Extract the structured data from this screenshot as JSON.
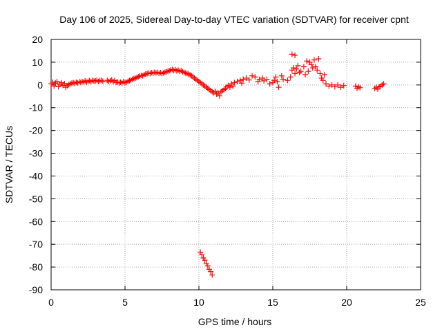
{
  "chart_data": {
    "type": "scatter",
    "title": "Day 106 of 2025, Sidereal Day-to-day VTEC variation (SDTVAR) for receiver cpnt",
    "xlabel": "GPS time / hours",
    "ylabel": "SDTVAR / TECUs",
    "xlim": [
      0,
      25
    ],
    "ylim": [
      -90,
      20
    ],
    "xticks": [
      0,
      5,
      10,
      15,
      20,
      25
    ],
    "yticks": [
      20,
      10,
      0,
      -10,
      -20,
      -30,
      -40,
      -50,
      -60,
      -70,
      -80,
      -90
    ],
    "grid": true,
    "marker": "plus",
    "colors": {
      "series": "#ff0000",
      "grid": "#a0a0a0",
      "axes": "#000000"
    },
    "series": [
      {
        "name": "SDTVAR",
        "points": [
          [
            0.0,
            0.5
          ],
          [
            0.1,
            1.2
          ],
          [
            0.2,
            -0.5
          ],
          [
            0.3,
            0.8
          ],
          [
            0.4,
            1.5
          ],
          [
            0.5,
            -0.8
          ],
          [
            0.6,
            0.3
          ],
          [
            0.7,
            1.0
          ],
          [
            0.8,
            -0.2
          ],
          [
            0.9,
            0.6
          ],
          [
            1.0,
            -1.0
          ],
          [
            1.1,
            -0.3
          ],
          [
            1.2,
            0.2
          ],
          [
            1.3,
            0.5
          ],
          [
            1.4,
            0.8
          ],
          [
            1.5,
            1.0
          ],
          [
            1.6,
            0.7
          ],
          [
            1.7,
            1.2
          ],
          [
            1.8,
            0.9
          ],
          [
            1.9,
            1.4
          ],
          [
            2.0,
            1.1
          ],
          [
            2.1,
            1.5
          ],
          [
            2.2,
            1.3
          ],
          [
            2.3,
            1.8
          ],
          [
            2.4,
            1.2
          ],
          [
            2.5,
            1.6
          ],
          [
            2.6,
            1.9
          ],
          [
            2.7,
            1.4
          ],
          [
            2.8,
            2.0
          ],
          [
            2.9,
            1.7
          ],
          [
            3.0,
            1.8
          ],
          [
            3.1,
            2.1
          ],
          [
            3.2,
            1.5
          ],
          [
            3.3,
            1.9
          ],
          [
            3.4,
            2.0
          ],
          [
            3.5,
            1.6
          ],
          [
            3.8,
            2.0
          ],
          [
            3.9,
            1.5
          ],
          [
            4.0,
            1.8
          ],
          [
            4.1,
            2.2
          ],
          [
            4.2,
            1.4
          ],
          [
            4.3,
            1.9
          ],
          [
            4.4,
            1.1
          ],
          [
            4.5,
            1.3
          ],
          [
            4.6,
            0.9
          ],
          [
            4.7,
            1.2
          ],
          [
            4.8,
            0.8
          ],
          [
            4.9,
            1.5
          ],
          [
            5.0,
            1.0
          ],
          [
            5.1,
            1.2
          ],
          [
            5.2,
            1.6
          ],
          [
            5.3,
            1.9
          ],
          [
            5.4,
            2.2
          ],
          [
            5.5,
            2.5
          ],
          [
            5.6,
            2.8
          ],
          [
            5.7,
            3.0
          ],
          [
            5.8,
            3.3
          ],
          [
            5.9,
            3.6
          ],
          [
            6.0,
            3.9
          ],
          [
            6.1,
            4.2
          ],
          [
            6.2,
            4.0
          ],
          [
            6.3,
            4.5
          ],
          [
            6.4,
            4.8
          ],
          [
            6.5,
            5.0
          ],
          [
            6.6,
            5.2
          ],
          [
            6.7,
            5.0
          ],
          [
            6.8,
            5.4
          ],
          [
            6.9,
            5.2
          ],
          [
            7.0,
            5.6
          ],
          [
            7.1,
            5.3
          ],
          [
            7.2,
            5.5
          ],
          [
            7.3,
            5.1
          ],
          [
            7.4,
            5.4
          ],
          [
            7.5,
            5.0
          ],
          [
            7.6,
            5.3
          ],
          [
            7.7,
            5.6
          ],
          [
            7.8,
            5.8
          ],
          [
            7.9,
            6.0
          ],
          [
            8.0,
            6.3
          ],
          [
            8.1,
            6.5
          ],
          [
            8.2,
            6.8
          ],
          [
            8.3,
            6.4
          ],
          [
            8.4,
            6.7
          ],
          [
            8.5,
            6.2
          ],
          [
            8.6,
            6.5
          ],
          [
            8.7,
            6.0
          ],
          [
            8.8,
            6.3
          ],
          [
            8.9,
            5.8
          ],
          [
            9.0,
            5.5
          ],
          [
            9.1,
            5.2
          ],
          [
            9.2,
            5.0
          ],
          [
            9.3,
            4.8
          ],
          [
            9.4,
            4.5
          ],
          [
            9.5,
            4.0
          ],
          [
            9.6,
            3.5
          ],
          [
            9.7,
            3.0
          ],
          [
            9.8,
            2.5
          ],
          [
            9.9,
            2.0
          ],
          [
            10.0,
            1.5
          ],
          [
            10.1,
            1.0
          ],
          [
            10.2,
            0.5
          ],
          [
            10.3,
            0.0
          ],
          [
            10.4,
            -0.5
          ],
          [
            10.5,
            -1.0
          ],
          [
            10.6,
            -1.5
          ],
          [
            10.7,
            -2.0
          ],
          [
            10.8,
            -2.5
          ],
          [
            10.9,
            -3.0
          ],
          [
            11.0,
            -3.5
          ],
          [
            11.1,
            -2.8
          ],
          [
            11.2,
            -4.0
          ],
          [
            11.3,
            -3.5
          ],
          [
            11.4,
            -4.8
          ],
          [
            11.5,
            -3.0
          ],
          [
            11.6,
            -2.5
          ],
          [
            11.7,
            -2.0
          ],
          [
            11.8,
            -1.5
          ],
          [
            11.9,
            -0.8
          ],
          [
            12.0,
            -0.2
          ],
          [
            12.1,
            -1.0
          ],
          [
            12.2,
            0.5
          ],
          [
            12.3,
            -0.5
          ],
          [
            12.4,
            1.0
          ],
          [
            12.6,
            1.5
          ],
          [
            12.8,
            2.0
          ],
          [
            12.9,
            0.8
          ],
          [
            13.0,
            2.5
          ],
          [
            13.2,
            3.0
          ],
          [
            13.4,
            2.2
          ],
          [
            13.6,
            4.0
          ],
          [
            13.8,
            3.5
          ],
          [
            14.0,
            1.5
          ],
          [
            14.1,
            2.5
          ],
          [
            14.3,
            3.0
          ],
          [
            14.4,
            1.8
          ],
          [
            14.6,
            2.5
          ],
          [
            14.8,
            0.5
          ],
          [
            15.0,
            1.0
          ],
          [
            15.1,
            2.0
          ],
          [
            15.2,
            3.5
          ],
          [
            15.3,
            1.5
          ],
          [
            15.4,
            -1.0
          ],
          [
            15.6,
            4.0
          ],
          [
            15.7,
            2.5
          ],
          [
            16.0,
            2.0
          ],
          [
            16.2,
            3.5
          ],
          [
            16.3,
            6.5
          ],
          [
            16.4,
            7.5
          ],
          [
            16.5,
            5.0
          ],
          [
            16.6,
            7.0
          ],
          [
            16.7,
            8.5
          ],
          [
            16.8,
            5.5
          ],
          [
            16.9,
            6.0
          ],
          [
            17.1,
            8.0
          ],
          [
            17.2,
            4.5
          ],
          [
            17.3,
            10.5
          ],
          [
            17.4,
            6.0
          ],
          [
            17.5,
            10.0
          ],
          [
            17.6,
            9.0
          ],
          [
            17.7,
            7.5
          ],
          [
            17.8,
            11.0
          ],
          [
            17.9,
            8.0
          ],
          [
            18.0,
            6.5
          ],
          [
            18.1,
            11.5
          ],
          [
            18.2,
            5.0
          ],
          [
            18.3,
            3.0
          ],
          [
            18.4,
            2.0
          ],
          [
            18.5,
            4.5
          ],
          [
            18.6,
            0.5
          ],
          [
            18.8,
            -0.5
          ],
          [
            19.0,
            0.0
          ],
          [
            19.2,
            -0.8
          ],
          [
            19.4,
            0.0
          ],
          [
            19.6,
            -1.0
          ],
          [
            19.8,
            -0.3
          ],
          [
            20.6,
            -0.5
          ],
          [
            20.7,
            -1.5
          ],
          [
            20.8,
            -0.8
          ],
          [
            20.9,
            -1.2
          ],
          [
            21.9,
            -1.5
          ],
          [
            22.0,
            -1.0
          ],
          [
            22.1,
            -1.8
          ],
          [
            22.2,
            -0.8
          ],
          [
            22.3,
            -0.5
          ],
          [
            22.4,
            0.0
          ],
          [
            22.5,
            0.5
          ],
          [
            16.3,
            13.5
          ],
          [
            16.5,
            13.0
          ],
          [
            10.1,
            -73.5
          ],
          [
            10.2,
            -74.5
          ],
          [
            10.3,
            -76.0
          ],
          [
            10.4,
            -77.0
          ],
          [
            10.5,
            -78.5
          ],
          [
            10.6,
            -79.5
          ],
          [
            10.7,
            -81.0
          ],
          [
            10.8,
            -82.0
          ],
          [
            10.9,
            -83.5
          ]
        ]
      }
    ]
  }
}
